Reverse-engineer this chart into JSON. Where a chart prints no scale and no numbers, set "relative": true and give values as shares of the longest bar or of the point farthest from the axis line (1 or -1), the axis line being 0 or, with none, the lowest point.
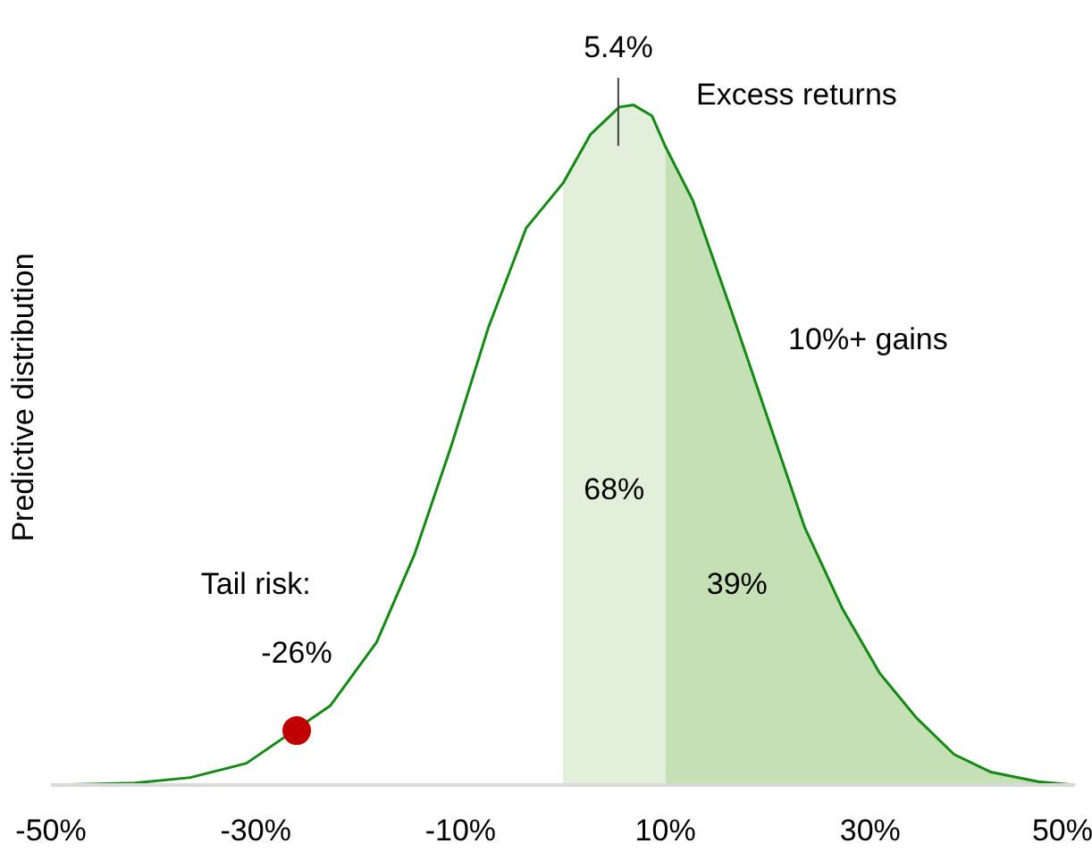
{
  "chart_data": {
    "type": "line",
    "relative": true,
    "ylabel": "Predictive distribution",
    "xlim": [
      -50,
      50
    ],
    "xticks": [
      {
        "value": -50,
        "label": "-50%"
      },
      {
        "value": -30,
        "label": "-30%"
      },
      {
        "value": -10,
        "label": "-10%"
      },
      {
        "value": 10,
        "label": "10%"
      },
      {
        "value": 30,
        "label": "30%"
      },
      {
        "value": 50,
        "label": "50%"
      }
    ],
    "series": [
      {
        "type": "area",
        "color": "#e2efda",
        "x": [
          0,
          2.7,
          5.5,
          6.9,
          8.7,
          10
        ],
        "values": [
          0.885,
          0.957,
          0.997,
          1,
          0.984,
          0.939
        ]
      },
      {
        "type": "area",
        "color": "#c5e0b4",
        "x": [
          10,
          12.7,
          16.4,
          20,
          23.6,
          27.3,
          30.9,
          34.5,
          38.2,
          41.8,
          46.4,
          50
        ],
        "values": [
          0.939,
          0.859,
          0.699,
          0.539,
          0.379,
          0.259,
          0.165,
          0.099,
          0.045,
          0.019,
          0.005,
          0
        ]
      },
      {
        "color": "#138a13",
        "x": [
          -50,
          -41.8,
          -36.4,
          -30.9,
          -22.7,
          -18.2,
          -14.5,
          -10.9,
          -7.3,
          -3.6,
          0,
          2.7,
          5.5,
          6.9,
          8.7,
          10,
          12.7,
          16.4,
          20,
          23.6,
          27.3,
          30.9,
          34.5,
          38.2,
          41.8,
          46.4,
          50
        ],
        "values": [
          0,
          0.003,
          0.011,
          0.032,
          0.117,
          0.21,
          0.339,
          0.499,
          0.672,
          0.819,
          0.885,
          0.957,
          0.997,
          1,
          0.984,
          0.939,
          0.859,
          0.699,
          0.539,
          0.379,
          0.259,
          0.165,
          0.099,
          0.045,
          0.019,
          0.005,
          0
        ]
      },
      {
        "type": "scatter",
        "color": "#c00000",
        "marker": "circle",
        "x": [
          -26
        ],
        "values": [
          0.08
        ]
      }
    ],
    "annotations": [
      {
        "text": "5.4%",
        "x": 5.4,
        "y": 1
      },
      "Excess returns",
      "10%+ gains",
      "68%",
      "39%",
      "Tail risk:",
      "-26%"
    ]
  }
}
